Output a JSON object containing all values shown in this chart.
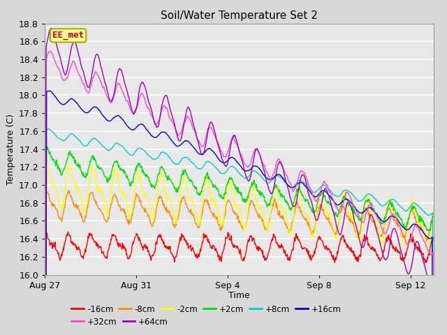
{
  "title": "Soil/Water Temperature Set 2",
  "ylabel": "Temperature (C)",
  "xlabel": "Time",
  "ylim": [
    16.0,
    18.8
  ],
  "background_color": "#d8d8d8",
  "plot_bg_color": "#e8e8e8",
  "series": [
    {
      "label": "-16cm",
      "color": "#ff0000"
    },
    {
      "label": "-8cm",
      "color": "#ff8c00"
    },
    {
      "label": "-2cm",
      "color": "#ffff00"
    },
    {
      "label": "+2cm",
      "color": "#00dd00"
    },
    {
      "label": "+8cm",
      "color": "#00cccc"
    },
    {
      "label": "+16cm",
      "color": "#0000cc"
    },
    {
      "label": "+32cm",
      "color": "#ff44cc"
    },
    {
      "label": "+64cm",
      "color": "#9900bb"
    }
  ],
  "xtick_labels": [
    "Aug 27",
    "Aug 31",
    "Sep 4",
    "Sep 8",
    "Sep 12"
  ],
  "xtick_positions": [
    0,
    4,
    8,
    12,
    16
  ],
  "n_days": 17,
  "pts_per_day": 48,
  "watermark_text": "EE_met",
  "watermark_color": "#cc0000",
  "watermark_bg": "#ffff99",
  "watermark_border": "#aaaa00"
}
